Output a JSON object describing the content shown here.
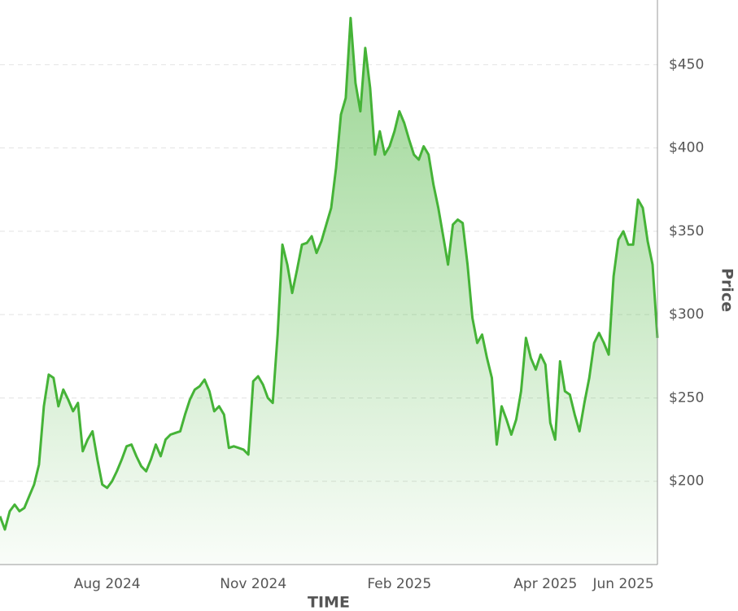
{
  "chart_data": {
    "type": "area",
    "x_label": "TIME",
    "y_label": "Price",
    "color": "#45b337",
    "grid": true,
    "categories": [
      null,
      null,
      null,
      null,
      null,
      null,
      null,
      null,
      null,
      null,
      null,
      null,
      null,
      null,
      null,
      null,
      null,
      null,
      null,
      null,
      null,
      null,
      "Aug 2024",
      null,
      null,
      null,
      null,
      null,
      null,
      null,
      null,
      null,
      null,
      null,
      null,
      null,
      null,
      null,
      null,
      null,
      null,
      null,
      null,
      null,
      null,
      null,
      null,
      null,
      null,
      null,
      null,
      null,
      "Nov 2024",
      null,
      null,
      null,
      null,
      null,
      null,
      null,
      null,
      null,
      null,
      null,
      null,
      null,
      null,
      null,
      null,
      null,
      null,
      null,
      null,
      null,
      null,
      null,
      null,
      null,
      null,
      null,
      null,
      null,
      "Feb 2025",
      null,
      null,
      null,
      null,
      null,
      null,
      null,
      null,
      null,
      null,
      null,
      null,
      null,
      null,
      null,
      null,
      null,
      null,
      null,
      null,
      null,
      null,
      null,
      null,
      null,
      null,
      null,
      null,
      null,
      "Apr 2025",
      null,
      null,
      null,
      null,
      null,
      null,
      null,
      null,
      null,
      null,
      null,
      null,
      null,
      null,
      null,
      "Jun 2025",
      null,
      null,
      null,
      null,
      null,
      null,
      null
    ],
    "values": [
      179,
      171,
      182,
      186,
      182,
      184,
      191,
      198,
      210,
      245,
      264,
      262,
      245,
      255,
      249,
      242,
      247,
      218,
      225,
      230,
      213,
      198,
      196,
      200,
      206,
      213,
      221,
      222,
      215,
      209,
      206,
      213,
      222,
      215,
      225,
      228,
      229,
      230,
      240,
      249,
      255,
      257,
      261,
      254,
      242,
      245,
      240,
      220,
      221,
      220,
      219,
      216,
      260,
      263,
      258,
      250,
      247,
      288,
      342,
      330,
      313,
      327,
      342,
      343,
      347,
      337,
      344,
      354,
      364,
      388,
      420,
      430,
      478,
      439,
      422,
      460,
      436,
      396,
      410,
      396,
      401,
      410,
      422,
      415,
      405,
      396,
      393,
      401,
      396,
      378,
      364,
      347,
      330,
      354,
      357,
      355,
      330,
      298,
      283,
      288,
      274,
      262,
      222,
      245,
      237,
      228,
      237,
      254,
      286,
      274,
      267,
      276,
      270,
      235,
      225,
      272,
      254,
      252,
      240,
      230,
      247,
      262,
      283,
      289,
      283,
      276,
      323,
      345,
      350,
      342,
      342,
      369,
      364,
      344,
      330,
      286
    ],
    "ylim": [
      150,
      480
    ],
    "yticks": [
      {
        "value": 200,
        "label": "$200"
      },
      {
        "value": 250,
        "label": "$250"
      },
      {
        "value": 300,
        "label": "$300"
      },
      {
        "value": 350,
        "label": "$350"
      },
      {
        "value": 400,
        "label": "$400"
      },
      {
        "value": 450,
        "label": "$450"
      }
    ]
  }
}
